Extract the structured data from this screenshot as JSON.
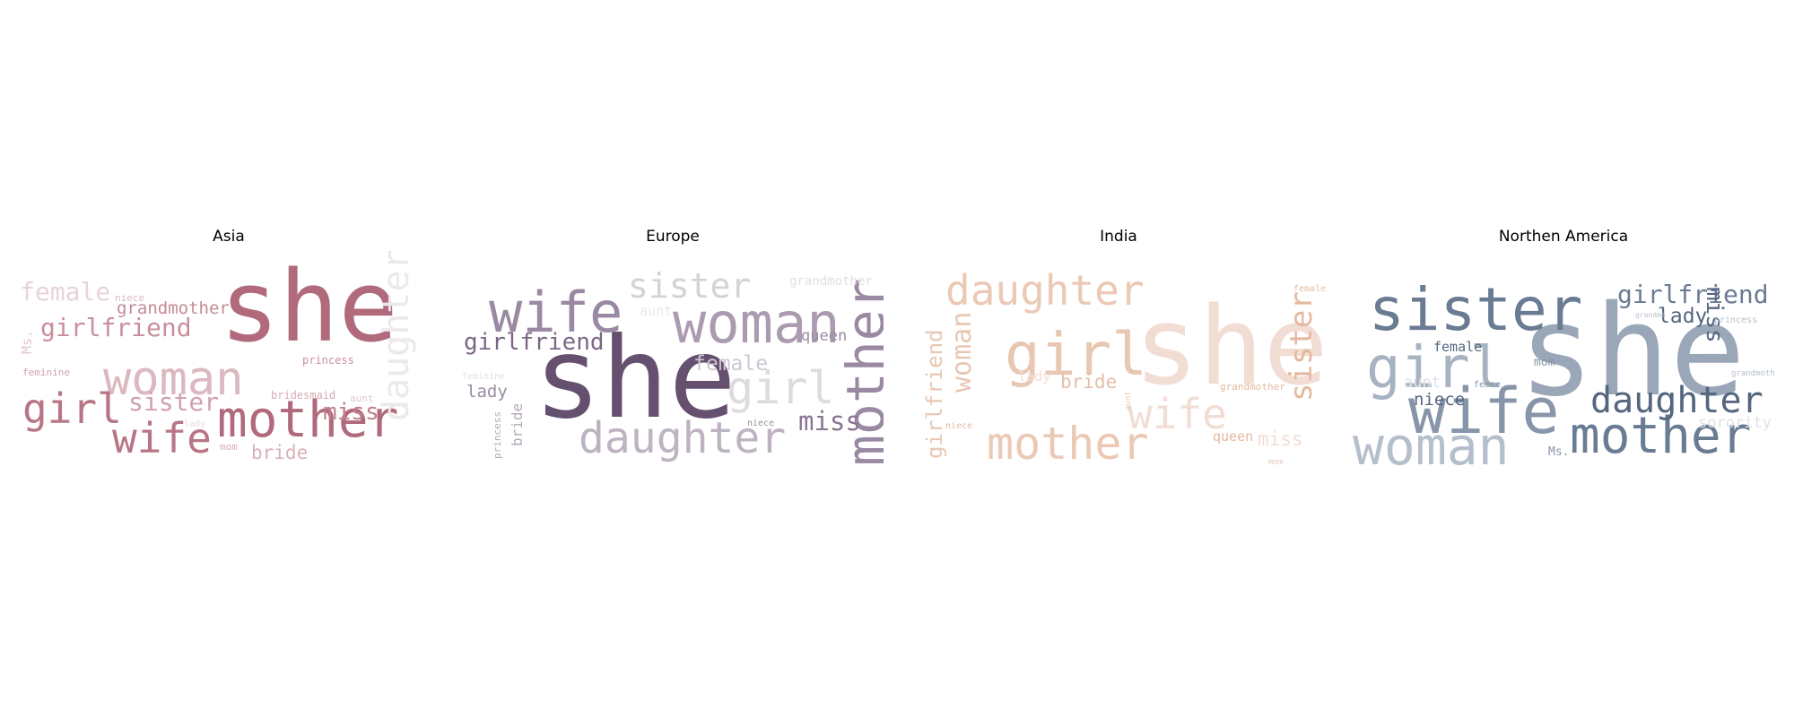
{
  "panels": [
    {
      "title": "Asia",
      "words": [
        {
          "text": "she",
          "color": "#b06a7b"
        },
        {
          "text": "mother",
          "color": "#b06a7b"
        },
        {
          "text": "woman",
          "color": "#dcb8c0"
        },
        {
          "text": "wife",
          "color": "#b87585"
        },
        {
          "text": "girl",
          "color": "#b87585"
        },
        {
          "text": "girlfriend",
          "color": "#c98f9c"
        },
        {
          "text": "daughter",
          "color": "#ece9ea"
        },
        {
          "text": "sister",
          "color": "#cfa2ad"
        },
        {
          "text": "female",
          "color": "#e8d4d8"
        },
        {
          "text": "grandmother",
          "color": "#c48a97"
        },
        {
          "text": "miss",
          "color": "#c07f8d"
        },
        {
          "text": "bride",
          "color": "#d9b1ba"
        },
        {
          "text": "princess",
          "color": "#c98f9c"
        },
        {
          "text": "bridesmaid",
          "color": "#d6a9b3"
        },
        {
          "text": "niece",
          "color": "#dcb8c0"
        },
        {
          "text": "feminine",
          "color": "#cfa2ad"
        },
        {
          "text": "Ms.",
          "color": "#e3c8ce"
        },
        {
          "text": "aunt",
          "color": "#e3c8ce"
        },
        {
          "text": "mom",
          "color": "#d6a9b3"
        },
        {
          "text": "lady",
          "color": "#eadadd"
        }
      ]
    },
    {
      "title": "Europe",
      "words": [
        {
          "text": "she",
          "color": "#66506f"
        },
        {
          "text": "woman",
          "color": "#ab9bb0"
        },
        {
          "text": "wife",
          "color": "#9a89a2"
        },
        {
          "text": "mother",
          "color": "#9a89a2"
        },
        {
          "text": "daughter",
          "color": "#bdb3c1"
        },
        {
          "text": "sister",
          "color": "#d6d1d8"
        },
        {
          "text": "girl",
          "color": "#dedade"
        },
        {
          "text": "girlfriend",
          "color": "#7b6683"
        },
        {
          "text": "miss",
          "color": "#8a7592"
        },
        {
          "text": "female",
          "color": "#cfc7d2"
        },
        {
          "text": "queen",
          "color": "#9c8ca3"
        },
        {
          "text": "lady",
          "color": "#9c8ca3"
        },
        {
          "text": "grandmother",
          "color": "#e3dfe4"
        },
        {
          "text": "aunt",
          "color": "#ebe8ec"
        },
        {
          "text": "bride",
          "color": "#b6aabb"
        },
        {
          "text": "princess",
          "color": "#b6aabb"
        },
        {
          "text": "feminine",
          "color": "#e3dfe4"
        },
        {
          "text": "niece",
          "color": "#9c8ca3"
        }
      ]
    },
    {
      "title": "India",
      "words": [
        {
          "text": "she",
          "color": "#f1ddd4"
        },
        {
          "text": "girl",
          "color": "#e8c7b3"
        },
        {
          "text": "daughter",
          "color": "#ebc9b5"
        },
        {
          "text": "mother",
          "color": "#ebc9b5"
        },
        {
          "text": "wife",
          "color": "#f1ddd4"
        },
        {
          "text": "sister",
          "color": "#e5b99f"
        },
        {
          "text": "woman",
          "color": "#e8c7b3"
        },
        {
          "text": "girlfriend",
          "color": "#e8c7b3"
        },
        {
          "text": "bride",
          "color": "#e5c0aa"
        },
        {
          "text": "miss",
          "color": "#f1ddd4"
        },
        {
          "text": "queen",
          "color": "#e5b99f"
        },
        {
          "text": "lady",
          "color": "#f1ddd4"
        },
        {
          "text": "grandmother",
          "color": "#e5b99f"
        },
        {
          "text": "female",
          "color": "#e5b99f"
        },
        {
          "text": "niece",
          "color": "#e5b99f"
        },
        {
          "text": "aunt",
          "color": "#ebc9b5"
        },
        {
          "text": "mom",
          "color": "#ebc9b5"
        }
      ]
    },
    {
      "title": "Northen America",
      "words": [
        {
          "text": "she",
          "color": "#9aa7b8"
        },
        {
          "text": "sister",
          "color": "#6a7b94"
        },
        {
          "text": "wife",
          "color": "#8795aa"
        },
        {
          "text": "mother",
          "color": "#6a7b94"
        },
        {
          "text": "woman",
          "color": "#b5bfcc"
        },
        {
          "text": "girl",
          "color": "#a8b3c2"
        },
        {
          "text": "daughter",
          "color": "#55667f"
        },
        {
          "text": "girlfriend",
          "color": "#6a7b94"
        },
        {
          "text": "miss",
          "color": "#55667f"
        },
        {
          "text": "lady",
          "color": "#55667f"
        },
        {
          "text": "niece",
          "color": "#55667f"
        },
        {
          "text": "female",
          "color": "#55667f"
        },
        {
          "text": "aunt",
          "color": "#dde2e8"
        },
        {
          "text": "sorority",
          "color": "#dde2e8"
        },
        {
          "text": "mom",
          "color": "#8795aa"
        },
        {
          "text": "Ms.",
          "color": "#8795aa"
        },
        {
          "text": "femme",
          "color": "#8795aa"
        },
        {
          "text": "princess",
          "color": "#b5bfcc"
        },
        {
          "text": "grandmother",
          "color": "#b5bfcc"
        },
        {
          "text": "grandma",
          "color": "#b5bfcc"
        }
      ]
    }
  ]
}
